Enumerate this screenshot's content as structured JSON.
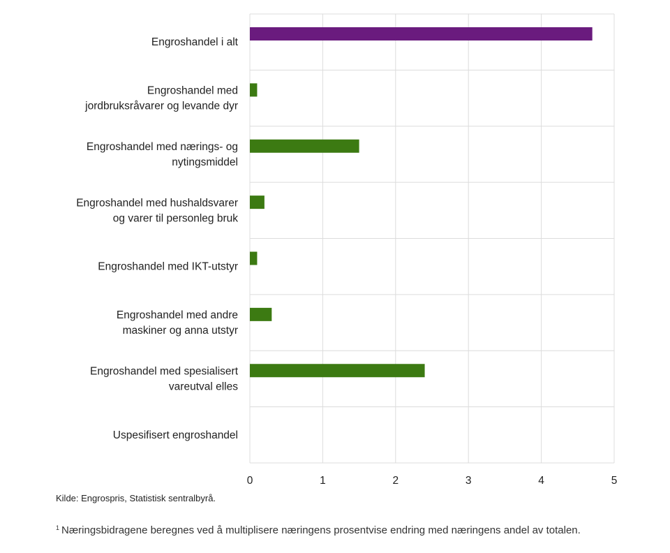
{
  "chart_data": {
    "type": "bar",
    "orientation": "horizontal",
    "categories": [
      [
        "Engroshandel i alt"
      ],
      [
        "Engroshandel med",
        "jordbruksråvarer og levande dyr"
      ],
      [
        "Engroshandel med nærings- og",
        "nytingsmiddel"
      ],
      [
        "Engroshandel med hushaldsvarer",
        "og varer til personleg bruk"
      ],
      [
        "Engroshandel med IKT-utstyr"
      ],
      [
        "Engroshandel med andre",
        "maskiner og anna utstyr"
      ],
      [
        "Engroshandel med spesialisert",
        "vareutval elles"
      ],
      [
        "Uspesifisert engroshandel"
      ]
    ],
    "values": [
      4.7,
      0.1,
      1.5,
      0.2,
      0.1,
      0.3,
      2.4,
      0
    ],
    "colors": [
      "#6a1b7e",
      "#3c7a12",
      "#3c7a12",
      "#3c7a12",
      "#3c7a12",
      "#3c7a12",
      "#3c7a12",
      "#3c7a12"
    ],
    "xlim": [
      0,
      5
    ],
    "xticks": [
      0,
      1,
      2,
      3,
      4,
      5
    ],
    "grid": true,
    "title": "",
    "xlabel": "",
    "ylabel": ""
  },
  "source": "Kilde: Engrospris, Statistisk sentralbyrå.",
  "footnote": {
    "marker": "1",
    "text": "Næringsbidragene beregnes ved å multiplisere næringens prosentvise endring med næringens andel av totalen."
  }
}
